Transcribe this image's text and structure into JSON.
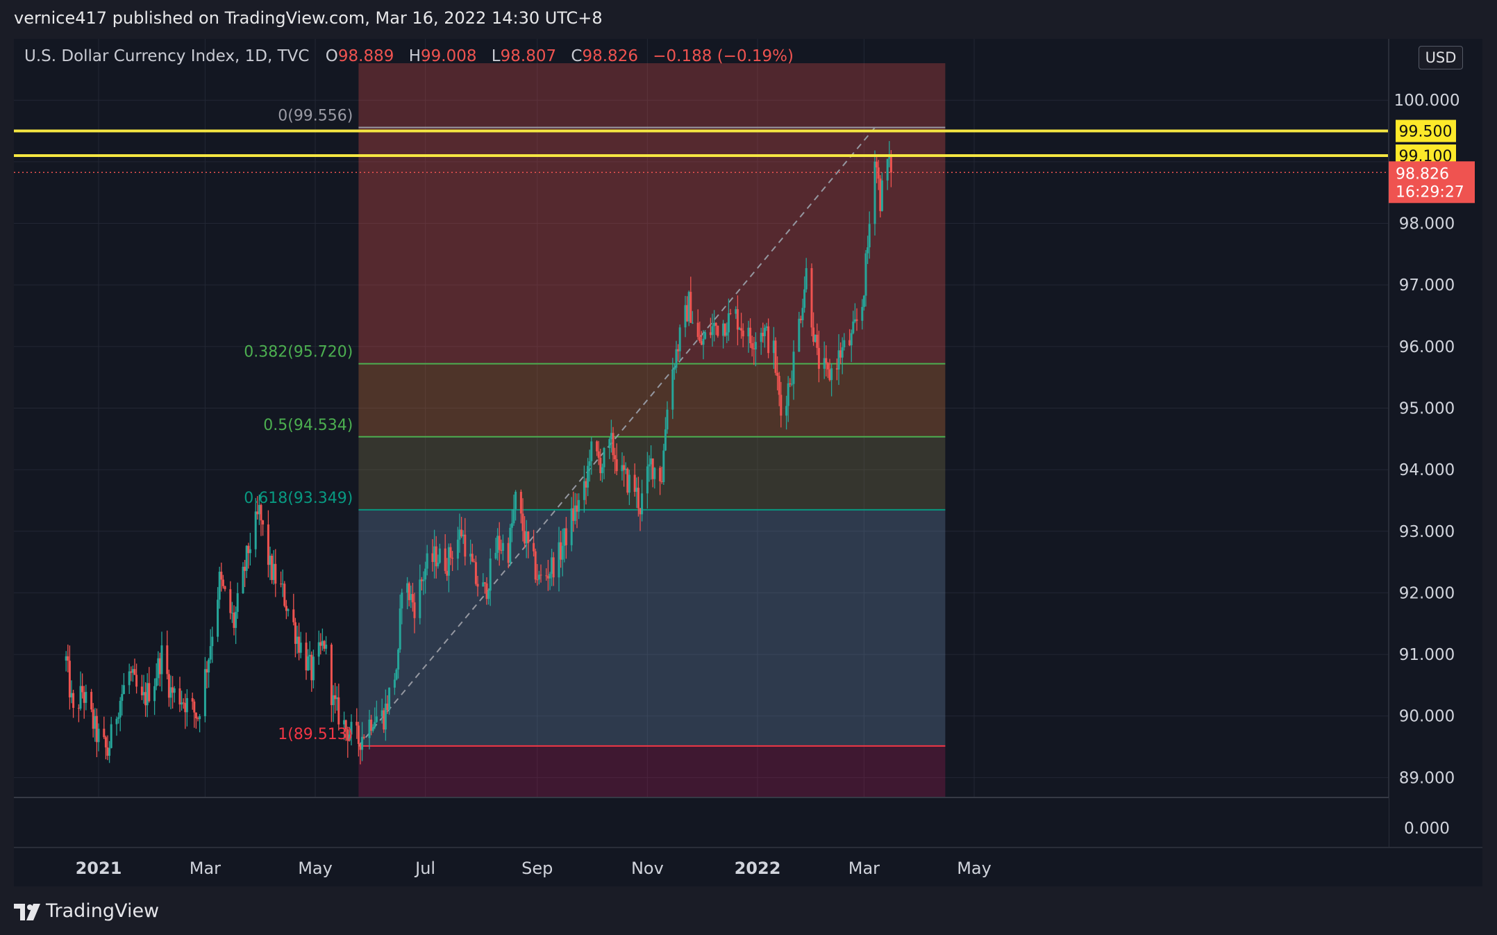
{
  "header": {
    "published": "vernice417 published on TradingView.com, Mar 16, 2022 14:30 UTC+8"
  },
  "legend": {
    "symbol": "U.S. Dollar Currency Index, 1D, TVC",
    "open_label": "O",
    "open": "98.889",
    "high_label": "H",
    "high": "99.008",
    "low_label": "L",
    "low": "98.807",
    "close_label": "C",
    "close": "98.826",
    "change": "−0.188 (−0.19%)"
  },
  "currency": "USD",
  "price_badge": {
    "price": "98.826",
    "countdown": "16:29:27",
    "color": "#ef5350"
  },
  "footer": {
    "brand": "TradingView"
  },
  "colors": {
    "background": "#131722",
    "up": "#26a69a",
    "down": "#ef5350",
    "level_line": "#f5e642",
    "fib_green": "#4caf50",
    "fib_teal": "#089981",
    "fib_red": "#f23645"
  },
  "chart_data": {
    "type": "candlestick",
    "ylim": [
      88.7,
      100.6
    ],
    "y_ticks": [
      "100.000",
      "99.000",
      "98.000",
      "97.000",
      "96.000",
      "95.000",
      "94.000",
      "93.000",
      "92.000",
      "91.000",
      "90.000",
      "89.000"
    ],
    "volume_tick": "0.000",
    "x_ticks": [
      {
        "label": "2021",
        "date": "2021-01-01",
        "bold": true
      },
      {
        "label": "Mar",
        "date": "2021-03-01"
      },
      {
        "label": "May",
        "date": "2021-05-01"
      },
      {
        "label": "Jul",
        "date": "2021-07-01"
      },
      {
        "label": "Sep",
        "date": "2021-09-01"
      },
      {
        "label": "Nov",
        "date": "2021-11-01"
      },
      {
        "label": "2022",
        "date": "2022-01-01",
        "bold": true
      },
      {
        "label": "Mar",
        "date": "2022-03-01"
      },
      {
        "label": "May",
        "date": "2022-05-01"
      }
    ],
    "horizontal_levels": [
      {
        "label": "99.500",
        "value": 99.5
      },
      {
        "label": "99.100",
        "value": 99.1
      }
    ],
    "fib_retracement": {
      "start_date": "2021-05-25",
      "end_date": "2022-04-15",
      "anchor_low": {
        "date": "2021-05-25",
        "value": 89.513
      },
      "anchor_high": {
        "date": "2022-03-07",
        "value": 99.556
      },
      "levels": [
        {
          "text": "0(99.556)",
          "ratio": 0,
          "value": 99.556
        },
        {
          "text": "0.382(95.720)",
          "ratio": 0.382,
          "value": 95.72
        },
        {
          "text": "0.5(94.534)",
          "ratio": 0.5,
          "value": 94.534
        },
        {
          "text": "0.618(93.349)",
          "ratio": 0.618,
          "value": 93.349
        },
        {
          "text": "1(89.513)",
          "ratio": 1,
          "value": 89.513
        }
      ]
    },
    "last_price": 98.826,
    "price_keypoints": [
      [
        "2020-12-14",
        90.9
      ],
      [
        "2020-12-18",
        90.0
      ],
      [
        "2020-12-23",
        90.4
      ],
      [
        "2020-12-31",
        89.7
      ],
      [
        "2021-01-06",
        89.4
      ],
      [
        "2021-01-12",
        90.2
      ],
      [
        "2021-01-18",
        90.7
      ],
      [
        "2021-01-25",
        90.2
      ],
      [
        "2021-02-01",
        90.6
      ],
      [
        "2021-02-05",
        91.0
      ],
      [
        "2021-02-10",
        90.4
      ],
      [
        "2021-02-16",
        90.3
      ],
      [
        "2021-02-25",
        90.0
      ],
      [
        "2021-03-03",
        91.0
      ],
      [
        "2021-03-09",
        92.2
      ],
      [
        "2021-03-17",
        91.5
      ],
      [
        "2021-03-25",
        92.7
      ],
      [
        "2021-03-31",
        93.3
      ],
      [
        "2021-04-06",
        92.4
      ],
      [
        "2021-04-13",
        92.0
      ],
      [
        "2021-04-22",
        91.2
      ],
      [
        "2021-04-29",
        90.7
      ],
      [
        "2021-05-06",
        91.2
      ],
      [
        "2021-05-11",
        90.2
      ],
      [
        "2021-05-18",
        89.8
      ],
      [
        "2021-05-25",
        89.6
      ],
      [
        "2021-06-02",
        90.0
      ],
      [
        "2021-06-08",
        90.0
      ],
      [
        "2021-06-16",
        90.9
      ],
      [
        "2021-06-18",
        92.2
      ],
      [
        "2021-06-25",
        91.8
      ],
      [
        "2021-07-01",
        92.4
      ],
      [
        "2021-07-07",
        92.6
      ],
      [
        "2021-07-13",
        92.5
      ],
      [
        "2021-07-21",
        93.0
      ],
      [
        "2021-07-29",
        92.2
      ],
      [
        "2021-08-03",
        92.0
      ],
      [
        "2021-08-10",
        92.8
      ],
      [
        "2021-08-16",
        92.7
      ],
      [
        "2021-08-20",
        93.5
      ],
      [
        "2021-08-27",
        92.7
      ],
      [
        "2021-09-02",
        92.2
      ],
      [
        "2021-09-06",
        92.3
      ],
      [
        "2021-09-13",
        92.6
      ],
      [
        "2021-09-20",
        93.2
      ],
      [
        "2021-09-28",
        93.7
      ],
      [
        "2021-09-30",
        94.3
      ],
      [
        "2021-10-07",
        94.1
      ],
      [
        "2021-10-12",
        94.4
      ],
      [
        "2021-10-18",
        93.9
      ],
      [
        "2021-10-25",
        93.7
      ],
      [
        "2021-10-28",
        93.4
      ],
      [
        "2021-11-03",
        94.1
      ],
      [
        "2021-11-09",
        93.9
      ],
      [
        "2021-11-12",
        95.1
      ],
      [
        "2021-11-16",
        95.8
      ],
      [
        "2021-11-24",
        96.7
      ],
      [
        "2021-11-30",
        96.0
      ],
      [
        "2021-12-07",
        96.3
      ],
      [
        "2021-12-14",
        96.4
      ],
      [
        "2021-12-20",
        96.5
      ],
      [
        "2021-12-28",
        96.1
      ],
      [
        "2022-01-04",
        96.3
      ],
      [
        "2022-01-10",
        95.9
      ],
      [
        "2022-01-14",
        94.9
      ],
      [
        "2022-01-20",
        95.6
      ],
      [
        "2022-01-28",
        97.2
      ],
      [
        "2022-02-03",
        95.8
      ],
      [
        "2022-02-09",
        95.5
      ],
      [
        "2022-02-16",
        95.9
      ],
      [
        "2022-02-22",
        96.1
      ],
      [
        "2022-02-28",
        96.7
      ],
      [
        "2022-03-03",
        97.6
      ],
      [
        "2022-03-07",
        99.2
      ],
      [
        "2022-03-10",
        98.4
      ],
      [
        "2022-03-14",
        99.0
      ],
      [
        "2022-03-16",
        98.826
      ]
    ]
  }
}
